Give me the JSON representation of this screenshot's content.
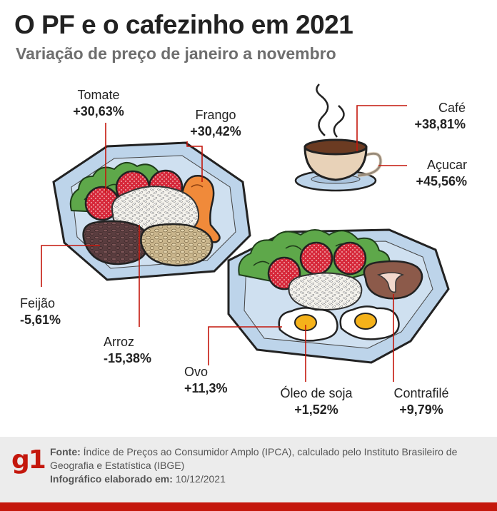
{
  "header": {
    "title": "O PF e o cafezinho em 2021",
    "subtitle": "Variação de preço de janeiro a novembro"
  },
  "items": {
    "tomate": {
      "name": "Tomate",
      "value": "+30,63%"
    },
    "frango": {
      "name": "Frango",
      "value": "+30,42%"
    },
    "cafe": {
      "name": "Café",
      "value": "+38,81%"
    },
    "acucar": {
      "name": "Açucar",
      "value": "+45,56%"
    },
    "feijao": {
      "name": "Feijão",
      "value": "-5,61%"
    },
    "arroz": {
      "name": "Arroz",
      "value": "-15,38%"
    },
    "ovo": {
      "name": "Ovo",
      "value": "+11,3%"
    },
    "oleo": {
      "name": "Óleo de soja",
      "value": "+1,52%"
    },
    "contrafile": {
      "name": "Contrafilé",
      "value": "+9,79%"
    }
  },
  "footer": {
    "logo": "g1",
    "source_label": "Fonte:",
    "source_text": "Índice de Preços ao Consumidor Amplo (IPCA), calculado pelo Instituto Brasileiro de Geografia e Estatística (IBGE)",
    "date_label": "Infográfico elaborado em:",
    "date_text": "10/12/2021"
  },
  "colors": {
    "leader_line": "#c4170c",
    "plate": "#bdd4ea",
    "brand": "#c4170c"
  }
}
